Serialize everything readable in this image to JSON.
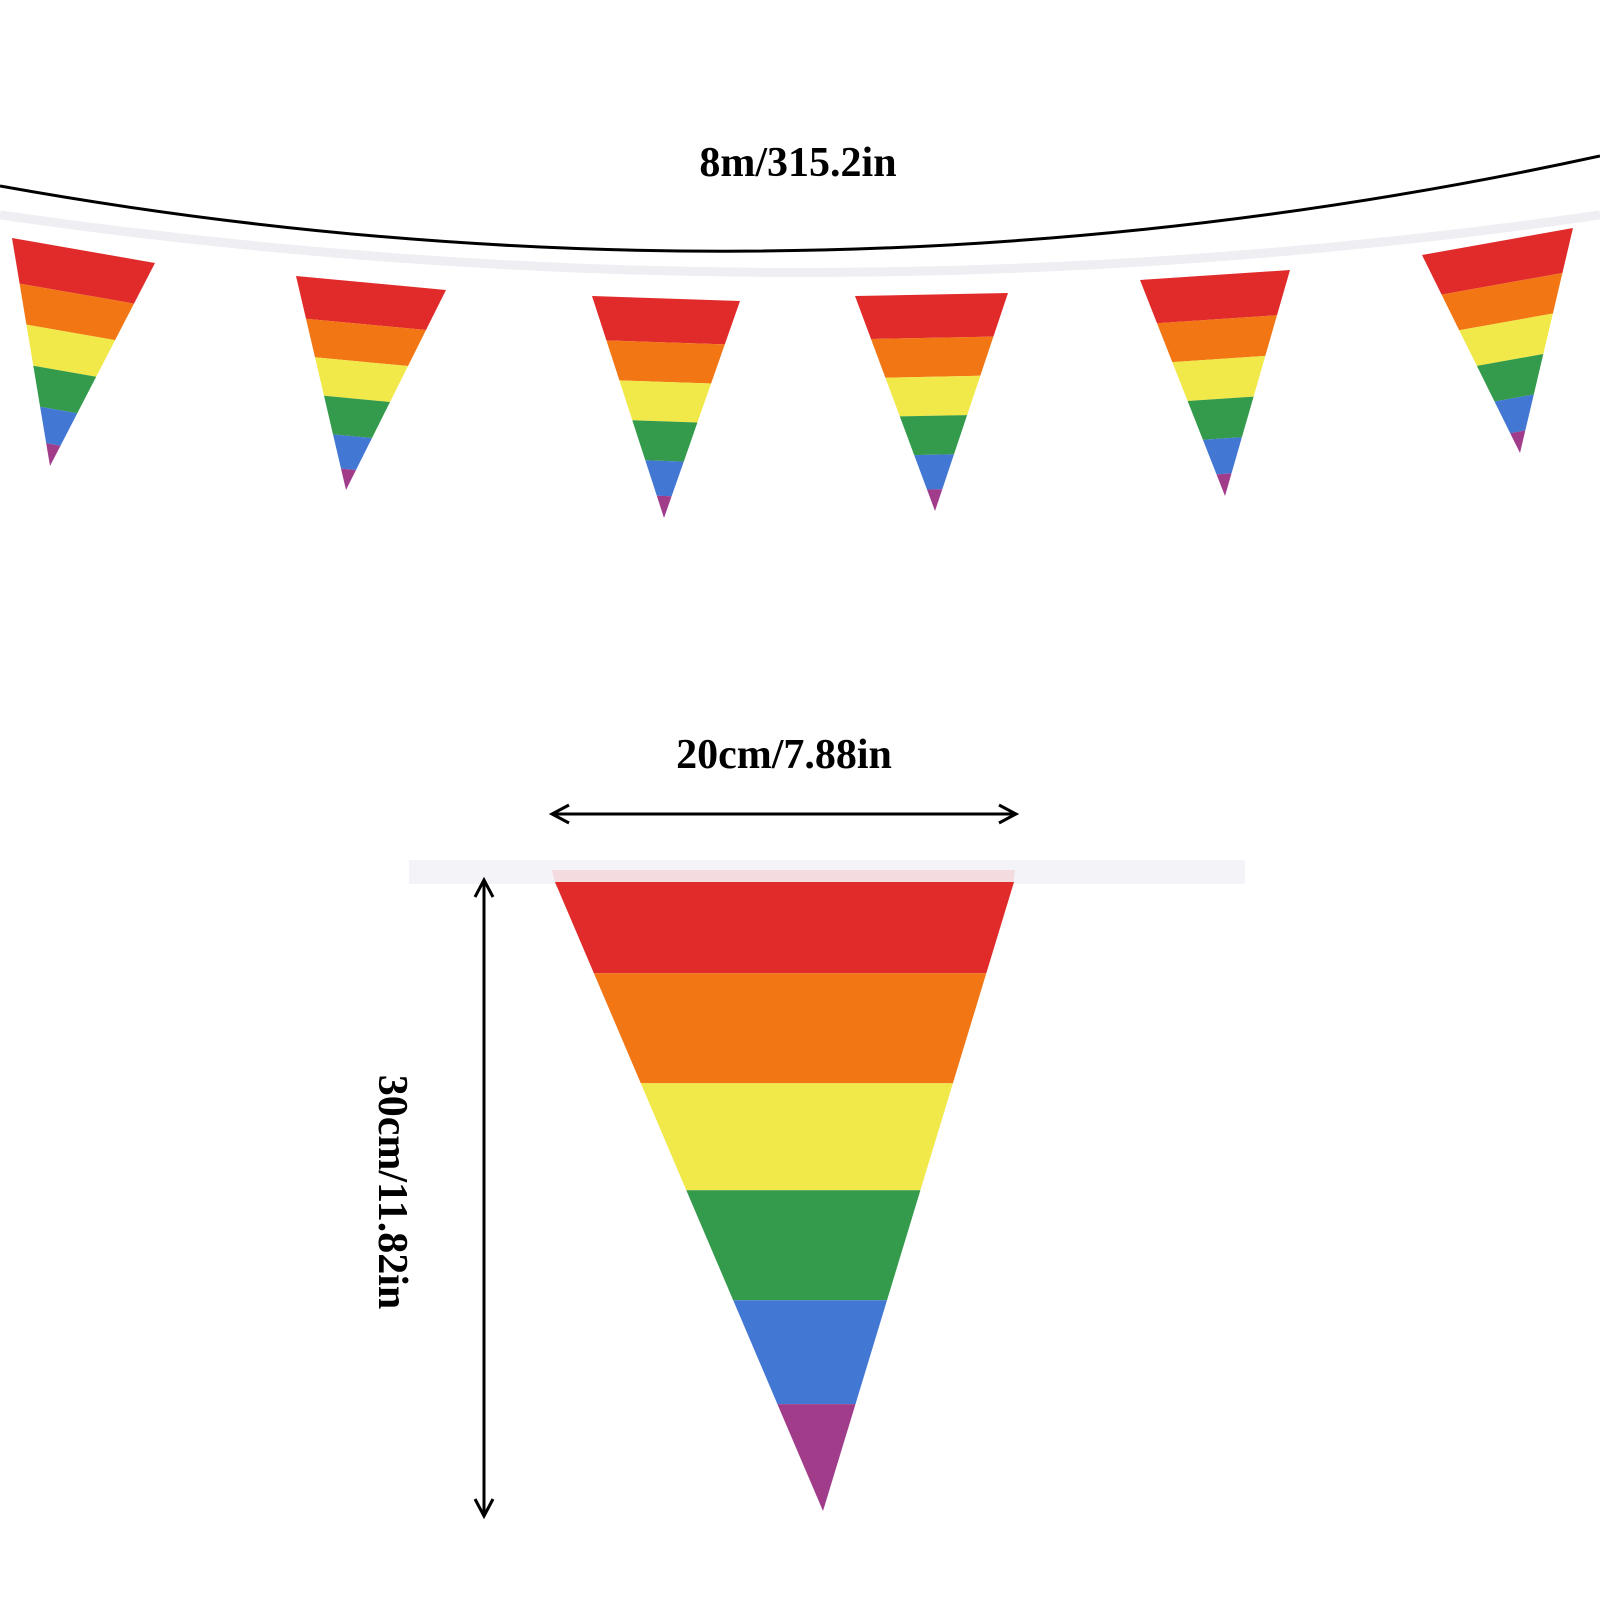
{
  "dimensions": {
    "total_length": "8m/315.2in",
    "flag_width": "20cm/7.88in",
    "flag_height": "30cm/11.82in"
  },
  "stripe_colors": [
    "#e12b2b",
    "#f27614",
    "#f1e84a",
    "#349a4c",
    "#4277d4",
    "#a03c8a"
  ],
  "rope_color": "#f4f4f8",
  "line_color": "#000000",
  "bunting": {
    "flag_count": 6
  }
}
